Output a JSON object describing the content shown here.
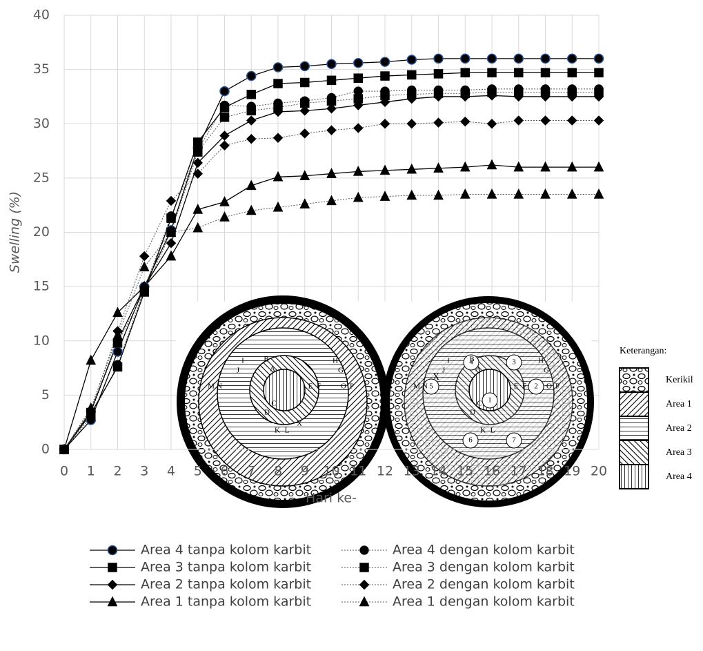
{
  "chart_data": {
    "type": "line",
    "xlabel": "Hari ke-",
    "ylabel": "Swelling (%)",
    "x": [
      0,
      1,
      2,
      3,
      4,
      5,
      6,
      7,
      8,
      9,
      10,
      11,
      12,
      13,
      14,
      15,
      16,
      17,
      18,
      19,
      20
    ],
    "xlim": [
      0,
      20
    ],
    "xticks": [
      0,
      1,
      2,
      3,
      4,
      5,
      6,
      7,
      8,
      9,
      10,
      11,
      12,
      13,
      14,
      15,
      16,
      17,
      18,
      19,
      20
    ],
    "ylim": [
      0,
      40
    ],
    "yticks": [
      0,
      5,
      10,
      15,
      20,
      25,
      30,
      35,
      40
    ],
    "grid": true,
    "series": [
      {
        "name": "Area 4 tanpa kolom karbit",
        "color": "#000000",
        "edgecolor": "#2f5597",
        "marker": "circle",
        "line_style": "solid",
        "values": [
          0,
          2.7,
          9.0,
          15.0,
          20.2,
          27.8,
          33.0,
          34.4,
          35.2,
          35.3,
          35.5,
          35.6,
          35.7,
          35.9,
          36.0,
          36.0,
          36.0,
          36.0,
          36.0,
          36.0,
          36.0
        ]
      },
      {
        "name": "Area 4 dengan kolom karbit",
        "color": "#000000",
        "marker": "circle",
        "line_style": "dotted",
        "values": [
          0,
          3.0,
          7.8,
          14.8,
          21.5,
          27.6,
          31.7,
          31.6,
          31.9,
          32.1,
          32.4,
          33.0,
          33.0,
          33.1,
          33.1,
          33.1,
          33.2,
          33.2,
          33.2,
          33.2,
          33.2
        ]
      },
      {
        "name": "Area 3 tanpa kolom karbit",
        "color": "#000000",
        "marker": "square",
        "line_style": "solid",
        "values": [
          0,
          3.3,
          7.6,
          14.5,
          21.3,
          28.3,
          31.5,
          32.7,
          33.7,
          33.8,
          34.0,
          34.2,
          34.4,
          34.5,
          34.6,
          34.7,
          34.7,
          34.7,
          34.7,
          34.7,
          34.7
        ]
      },
      {
        "name": "Area 3 dengan kolom karbit",
        "color": "#000000",
        "marker": "square",
        "line_style": "dotted",
        "values": [
          0,
          3.4,
          9.8,
          14.6,
          20.0,
          27.4,
          30.6,
          31.2,
          31.5,
          31.9,
          32.1,
          32.3,
          32.6,
          32.7,
          32.8,
          32.8,
          32.9,
          32.9,
          32.9,
          32.9,
          32.9
        ]
      },
      {
        "name": "Area 2 tanpa kolom karbit",
        "color": "#000000",
        "marker": "diamond",
        "line_style": "solid",
        "values": [
          0,
          3.5,
          10.0,
          15.0,
          19.0,
          26.4,
          28.9,
          30.3,
          31.1,
          31.2,
          31.4,
          31.7,
          32.0,
          32.3,
          32.5,
          32.5,
          32.6,
          32.5,
          32.5,
          32.5,
          32.5
        ]
      },
      {
        "name": "Area 2 dengan kolom karbit",
        "color": "#000000",
        "marker": "diamond",
        "line_style": "dotted",
        "values": [
          0,
          3.6,
          10.9,
          17.8,
          22.9,
          25.4,
          28.0,
          28.6,
          28.7,
          29.1,
          29.4,
          29.6,
          30.0,
          30.0,
          30.1,
          30.2,
          30.0,
          30.3,
          30.3,
          30.3,
          30.3
        ]
      },
      {
        "name": "Area 1 tanpa kolom karbit",
        "color": "#000000",
        "marker": "triangle",
        "line_style": "solid",
        "values": [
          0,
          8.2,
          12.6,
          15.0,
          17.8,
          22.1,
          22.8,
          24.3,
          25.1,
          25.2,
          25.4,
          25.6,
          25.7,
          25.8,
          25.9,
          26.0,
          26.2,
          26.0,
          26.0,
          26.0,
          26.0
        ]
      },
      {
        "name": "Area 1 dengan kolom karbit",
        "color": "#000000",
        "marker": "triangle",
        "line_style": "dotted",
        "values": [
          0,
          3.8,
          10.5,
          16.8,
          20.0,
          20.4,
          21.4,
          22.0,
          22.3,
          22.6,
          22.9,
          23.2,
          23.3,
          23.4,
          23.4,
          23.5,
          23.5,
          23.5,
          23.5,
          23.5,
          23.5
        ]
      }
    ]
  },
  "diagram": {
    "left_labels": [
      "I",
      "B",
      "H",
      "J",
      "A",
      "G",
      "M",
      "N",
      "E",
      "F",
      "O",
      "P",
      "C",
      "D",
      "K",
      "L",
      "X"
    ],
    "right_labels": [
      "4",
      "3",
      "1",
      "2",
      "5",
      "6",
      "7",
      "I",
      "B",
      "H",
      "J",
      "A",
      "G",
      "M",
      "N",
      "E",
      "F",
      "O",
      "P",
      "C",
      "D",
      "K",
      "L",
      "X"
    ],
    "key_title": "Keterangan:",
    "key": [
      "Kerikil",
      "Area 1",
      "Area 2",
      "Area 3",
      "Area 4"
    ]
  }
}
